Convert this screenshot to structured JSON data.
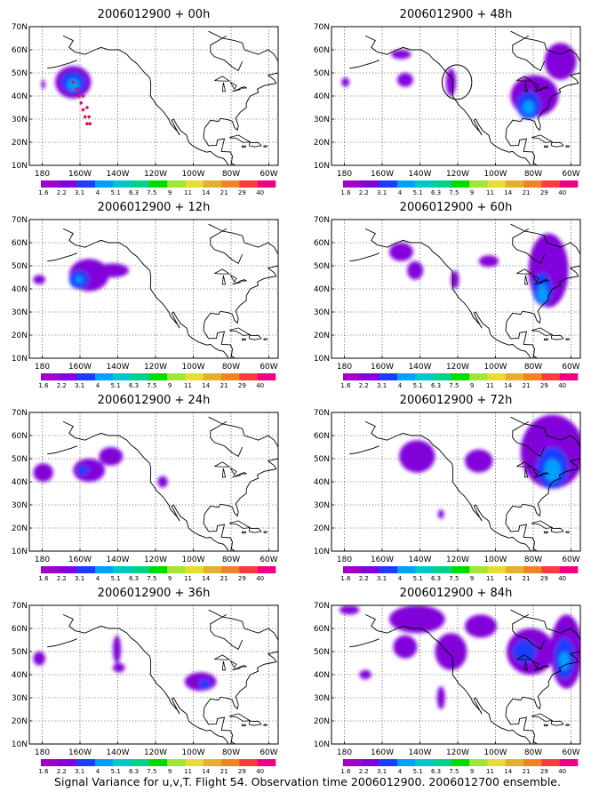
{
  "caption": "Signal Variance for u,v,T. Flight 54. Observation time 2006012900. 2006012700 ensemble.",
  "lat_labels": [
    "70N",
    "60N",
    "50N",
    "40N",
    "30N",
    "20N",
    "10N"
  ],
  "lon_labels": [
    "180",
    "160W",
    "140W",
    "120W",
    "100W",
    "80W",
    "60W"
  ],
  "colorbar": {
    "labels": [
      "1.6",
      "2.2",
      "3.1",
      "4",
      "5.1",
      "6.3",
      "7.5",
      "9",
      "11",
      "14",
      "21",
      "29",
      "40"
    ],
    "colors": [
      "#a000c8",
      "#8200dc",
      "#1e3cff",
      "#00a0ff",
      "#00c8c8",
      "#00d28c",
      "#00dc00",
      "#a0e632",
      "#e6dc32",
      "#e6af2d",
      "#f08228",
      "#fa3c3c",
      "#f00082"
    ]
  },
  "panels": [
    {
      "title": "2006012900 + 00h",
      "blobs": [
        {
          "lon": -163,
          "lat": 46,
          "rx": 9,
          "ry": 7,
          "level": 1
        },
        {
          "lon": -163,
          "lat": 46,
          "rx": 6,
          "ry": 4.5,
          "level": 2
        },
        {
          "lon": -163,
          "lat": 45,
          "rx": 3,
          "ry": 2.5,
          "level": 3
        },
        {
          "lon": -178,
          "lat": 45,
          "rx": 1,
          "ry": 2,
          "level": 1
        }
      ],
      "track": [
        [
          -163,
          46
        ],
        [
          -161,
          43
        ],
        [
          -160,
          40
        ],
        [
          -159,
          37
        ],
        [
          -158,
          34
        ],
        [
          -157,
          31
        ],
        [
          -156,
          28
        ],
        [
          -163,
          46
        ],
        [
          -158,
          40
        ],
        [
          -156,
          35
        ],
        [
          -155,
          31
        ],
        [
          -154.5,
          28
        ]
      ]
    },
    {
      "title": "2006012900 + 48h",
      "blobs": [
        {
          "lon": -150,
          "lat": 58,
          "rx": 5,
          "ry": 2,
          "level": 1
        },
        {
          "lon": -148,
          "lat": 47,
          "rx": 4,
          "ry": 3,
          "level": 1
        },
        {
          "lon": -178,
          "lat": 46,
          "rx": 2,
          "ry": 2,
          "level": 1
        },
        {
          "lon": -125,
          "lat": 46,
          "rx": 2.5,
          "ry": 6,
          "level": 1
        },
        {
          "lon": -70,
          "lat": 55,
          "rx": 8,
          "ry": 8,
          "level": 1
        },
        {
          "lon": -83,
          "lat": 40,
          "rx": 12,
          "ry": 9,
          "level": 1
        },
        {
          "lon": -86,
          "lat": 36,
          "rx": 6,
          "ry": 6,
          "level": 2
        },
        {
          "lon": -86,
          "lat": 35,
          "rx": 3,
          "ry": 3,
          "level": 3
        }
      ],
      "circle": {
        "lon": -122,
        "lat": 46,
        "r": 6.5
      },
      "track": []
    },
    {
      "title": "2006012900 + 12h",
      "blobs": [
        {
          "lon": -155,
          "lat": 46,
          "rx": 10,
          "ry": 7,
          "level": 1
        },
        {
          "lon": -143,
          "lat": 48,
          "rx": 8,
          "ry": 3,
          "level": 1
        },
        {
          "lon": -180,
          "lat": 44,
          "rx": 3,
          "ry": 2,
          "level": 1
        },
        {
          "lon": -160,
          "lat": 44,
          "rx": 5,
          "ry": 4,
          "level": 2
        },
        {
          "lon": -160,
          "lat": 44,
          "rx": 2,
          "ry": 1.5,
          "level": 3
        }
      ],
      "track": []
    },
    {
      "title": "2006012900 + 60h",
      "blobs": [
        {
          "lon": -150,
          "lat": 56,
          "rx": 6,
          "ry": 4,
          "level": 1
        },
        {
          "lon": -143,
          "lat": 48,
          "rx": 4,
          "ry": 4,
          "level": 1
        },
        {
          "lon": -123,
          "lat": 44,
          "rx": 2,
          "ry": 4,
          "level": 1
        },
        {
          "lon": -106,
          "lat": 52,
          "rx": 5,
          "ry": 2.5,
          "level": 1
        },
        {
          "lon": -76,
          "lat": 48,
          "rx": 10,
          "ry": 16,
          "level": 1
        },
        {
          "lon": -79,
          "lat": 40,
          "rx": 5,
          "ry": 7,
          "level": 2
        },
        {
          "lon": -79,
          "lat": 38,
          "rx": 2.5,
          "ry": 4,
          "level": 3
        }
      ],
      "track": []
    },
    {
      "title": "2006012900 + 24h",
      "blobs": [
        {
          "lon": -178,
          "lat": 44,
          "rx": 5,
          "ry": 4,
          "level": 1
        },
        {
          "lon": -155,
          "lat": 45,
          "rx": 8,
          "ry": 5,
          "level": 1
        },
        {
          "lon": -144,
          "lat": 51,
          "rx": 6,
          "ry": 4,
          "level": 1
        },
        {
          "lon": -118,
          "lat": 40,
          "rx": 2.5,
          "ry": 2.5,
          "level": 1
        },
        {
          "lon": -158,
          "lat": 45,
          "rx": 3,
          "ry": 2,
          "level": 2
        }
      ],
      "track": []
    },
    {
      "title": "2006012900 + 72h",
      "blobs": [
        {
          "lon": -142,
          "lat": 51,
          "rx": 9,
          "ry": 7,
          "level": 1
        },
        {
          "lon": -111,
          "lat": 49,
          "rx": 7,
          "ry": 5,
          "level": 1
        },
        {
          "lon": -74,
          "lat": 53,
          "rx": 16,
          "ry": 16,
          "level": 1
        },
        {
          "lon": -74,
          "lat": 46,
          "rx": 8,
          "ry": 9,
          "level": 2
        },
        {
          "lon": -74,
          "lat": 45,
          "rx": 4,
          "ry": 5,
          "level": 3
        },
        {
          "lon": -130,
          "lat": 26,
          "rx": 1.5,
          "ry": 2,
          "level": 1
        }
      ],
      "track": []
    },
    {
      "title": "2006012900 + 36h",
      "blobs": [
        {
          "lon": -180,
          "lat": 47,
          "rx": 3,
          "ry": 3,
          "level": 1
        },
        {
          "lon": -141,
          "lat": 51,
          "rx": 2,
          "ry": 6,
          "level": 1
        },
        {
          "lon": -140,
          "lat": 43,
          "rx": 3,
          "ry": 2,
          "level": 1
        },
        {
          "lon": -99,
          "lat": 37,
          "rx": 8,
          "ry": 4,
          "level": 1
        },
        {
          "lon": -97,
          "lat": 36,
          "rx": 3,
          "ry": 2,
          "level": 2
        }
      ],
      "track": []
    },
    {
      "title": "2006012900 + 84h",
      "blobs": [
        {
          "lon": -142,
          "lat": 64,
          "rx": 14,
          "ry": 6,
          "level": 1
        },
        {
          "lon": -110,
          "lat": 61,
          "rx": 8,
          "ry": 5,
          "level": 1
        },
        {
          "lon": -176,
          "lat": 68,
          "rx": 5,
          "ry": 2,
          "level": 1
        },
        {
          "lon": -148,
          "lat": 52,
          "rx": 6,
          "ry": 5,
          "level": 1
        },
        {
          "lon": -125,
          "lat": 50,
          "rx": 8,
          "ry": 8,
          "level": 1
        },
        {
          "lon": -168,
          "lat": 40,
          "rx": 3,
          "ry": 2,
          "level": 1
        },
        {
          "lon": -130,
          "lat": 30,
          "rx": 2,
          "ry": 5,
          "level": 1
        },
        {
          "lon": -85,
          "lat": 50,
          "rx": 12,
          "ry": 10,
          "level": 1
        },
        {
          "lon": -67,
          "lat": 50,
          "rx": 8,
          "ry": 16,
          "level": 1
        },
        {
          "lon": -88,
          "lat": 50,
          "rx": 6,
          "ry": 5,
          "level": 2
        },
        {
          "lon": -68,
          "lat": 47,
          "rx": 5,
          "ry": 9,
          "level": 2
        },
        {
          "lon": -68,
          "lat": 46,
          "rx": 2.5,
          "ry": 4,
          "level": 3
        }
      ],
      "track": []
    }
  ]
}
